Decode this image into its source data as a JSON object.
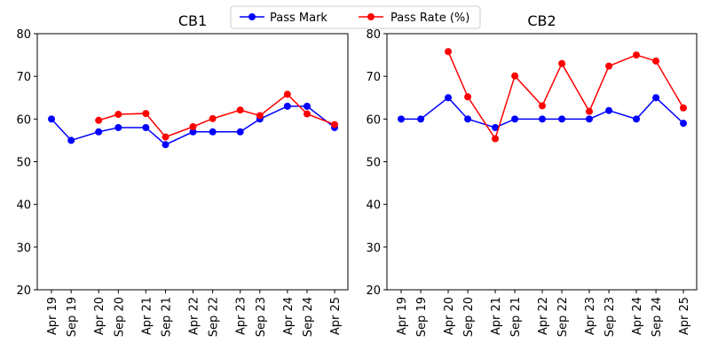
{
  "legend": {
    "placement": "top-center",
    "entries": [
      {
        "label": "Pass Mark",
        "color": "#0000ff"
      },
      {
        "label": "Pass Rate (%)",
        "color": "#ff0000"
      }
    ]
  },
  "chart_data": [
    {
      "type": "line",
      "title": "CB1",
      "xlabel": "",
      "ylabel": "",
      "ylim": [
        20,
        80
      ],
      "yticks": [
        20,
        30,
        40,
        50,
        60,
        70,
        80
      ],
      "x": [
        "Apr 19",
        "Sep 19",
        "Apr 20",
        "Sep 20",
        "Apr 21",
        "Sep 21",
        "Apr 22",
        "Sep 22",
        "Apr 23",
        "Sep 23",
        "Apr 24",
        "Sep 24",
        "Apr 25"
      ],
      "grid": false,
      "series": [
        {
          "name": "Pass Mark",
          "color": "#0000ff",
          "values": [
            60,
            55,
            57,
            58,
            58,
            54,
            57,
            57,
            57,
            60,
            63,
            63,
            58
          ]
        },
        {
          "name": "Pass Rate (%)",
          "color": "#ff0000",
          "values": [
            null,
            null,
            59.7,
            61.1,
            61.3,
            55.8,
            58.2,
            60.1,
            62.1,
            60.8,
            65.8,
            61.2,
            58.7
          ]
        }
      ]
    },
    {
      "type": "line",
      "title": "CB2",
      "xlabel": "",
      "ylabel": "",
      "ylim": [
        20,
        80
      ],
      "yticks": [
        20,
        30,
        40,
        50,
        60,
        70,
        80
      ],
      "x": [
        "Apr 19",
        "Sep 19",
        "Apr 20",
        "Sep 20",
        "Apr 21",
        "Sep 21",
        "Apr 22",
        "Sep 22",
        "Apr 23",
        "Sep 23",
        "Apr 24",
        "Sep 24",
        "Apr 25"
      ],
      "grid": false,
      "series": [
        {
          "name": "Pass Mark",
          "color": "#0000ff",
          "values": [
            60,
            60,
            65,
            60,
            58,
            60,
            60,
            60,
            60,
            62,
            60,
            65,
            59
          ]
        },
        {
          "name": "Pass Rate (%)",
          "color": "#ff0000",
          "values": [
            null,
            null,
            75.8,
            65.2,
            55.4,
            70.1,
            63.1,
            73.0,
            61.8,
            72.4,
            75.0,
            73.6,
            62.6
          ]
        }
      ]
    }
  ]
}
